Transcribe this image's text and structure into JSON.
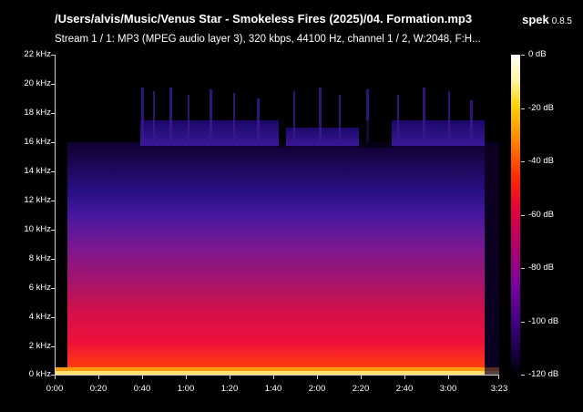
{
  "header": {
    "file_title": "/Users/alvis/Music/Venus Star - Smokeless Fires (2025)/04. Formation.mp3",
    "app_name": "spek",
    "app_version": "0.8.5",
    "stream_info": "Stream 1 / 1: MP3 (MPEG audio layer 3), 320 kbps, 44100 Hz, channel 1 / 2, W:2048, F:H..."
  },
  "freq_axis": {
    "ticks": [
      "22 kHz",
      "20 kHz",
      "18 kHz",
      "16 kHz",
      "14 kHz",
      "12 kHz",
      "10 kHz",
      "8 kHz",
      "6 kHz",
      "4 kHz",
      "2 kHz",
      "0 kHz"
    ]
  },
  "time_axis": {
    "ticks": [
      "0:00",
      "0:20",
      "0:40",
      "1:00",
      "1:20",
      "1:40",
      "2:00",
      "2:20",
      "2:40",
      "3:00",
      "3:23"
    ]
  },
  "db_scale": {
    "ticks": [
      "0 dB",
      "-20 dB",
      "-40 dB",
      "-60 dB",
      "-80 dB",
      "-100 dB",
      "-120 dB"
    ]
  },
  "colors": {
    "background": "#000000",
    "axis": "#cfcfcf"
  }
}
